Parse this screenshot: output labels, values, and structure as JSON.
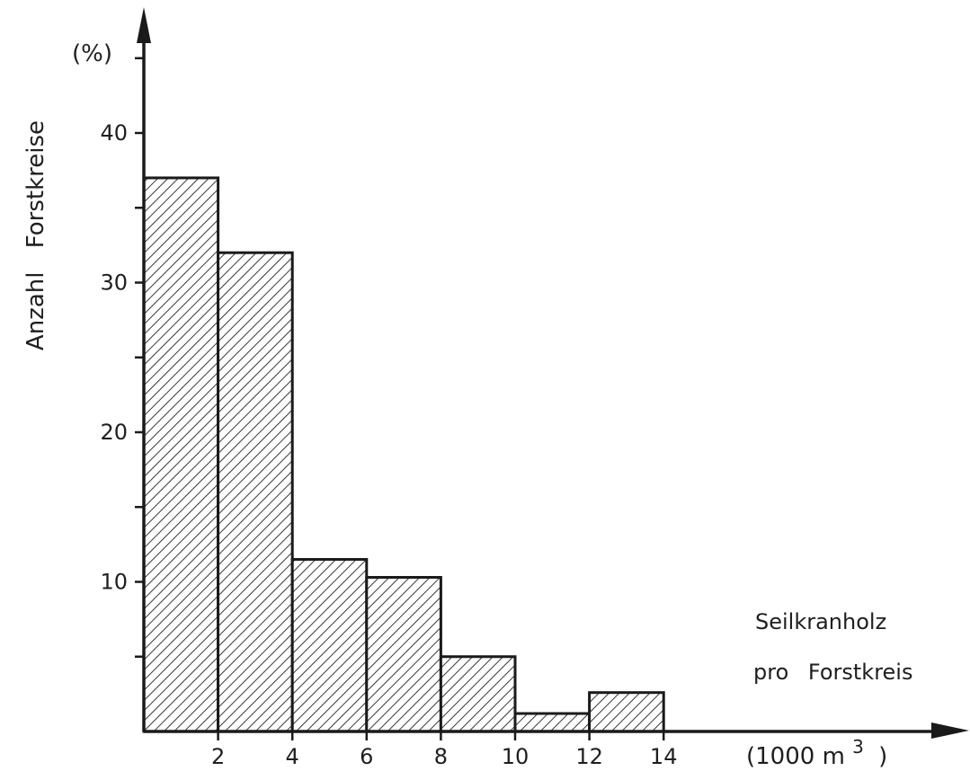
{
  "chart_data": {
    "type": "bar",
    "bins": [
      [
        0,
        2
      ],
      [
        2,
        4
      ],
      [
        4,
        6
      ],
      [
        6,
        8
      ],
      [
        8,
        10
      ],
      [
        10,
        12
      ],
      [
        12,
        14
      ]
    ],
    "values": [
      37,
      32,
      11.5,
      10.3,
      5,
      1.2,
      2.6
    ],
    "xticks": [
      "2",
      "4",
      "6",
      "8",
      "10",
      "12",
      "14"
    ],
    "yticks": [
      "10",
      "20",
      "30",
      "40"
    ],
    "xlim": [
      0,
      22.5
    ],
    "ylim": [
      0,
      48
    ],
    "ylabel": "Anzahl Forstkreise",
    "yunit": "(%)",
    "xunit": "(1000 m",
    "xunit_sup": "3",
    "xunit_close": ")",
    "xlabel_lines": [
      "Seilkranholz",
      "pro Forstkreis"
    ],
    "grid": false,
    "legend": "none"
  }
}
